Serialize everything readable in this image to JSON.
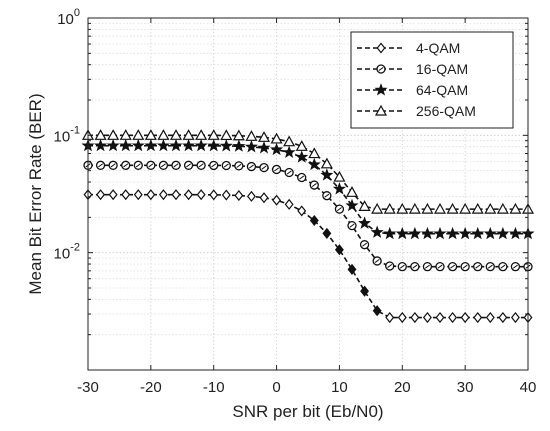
{
  "chart_data": {
    "type": "line",
    "title": "",
    "xlabel": "SNR per bit (Eb/N0)",
    "ylabel": "Mean Bit Error Rate (BER)",
    "xlim": [
      -30,
      40
    ],
    "ylim": [
      0.001,
      1
    ],
    "yscale": "log",
    "grid": true,
    "minor_grid": true,
    "legend_position": "top-right",
    "x_ticks": [
      -30,
      -20,
      -10,
      0,
      10,
      20,
      30,
      40
    ],
    "x_tick_labels": [
      "-30",
      "-20",
      "-10",
      "0",
      "10",
      "20",
      "30",
      "40"
    ],
    "y_ticks": [
      {
        "value": 1,
        "base": "10",
        "exp": "0"
      },
      {
        "value": 0.1,
        "base": "10",
        "exp": "-1"
      },
      {
        "value": 0.01,
        "base": "10",
        "exp": "-2"
      }
    ],
    "x": [
      -30,
      -28,
      -26,
      -24,
      -22,
      -20,
      -18,
      -16,
      -14,
      -12,
      -10,
      -8,
      -6,
      -4,
      -2,
      0,
      2,
      4,
      6,
      8,
      10,
      12,
      14,
      16,
      18,
      20,
      22,
      24,
      26,
      28,
      30,
      32,
      34,
      36,
      38,
      40
    ],
    "series": [
      {
        "name": "4-QAM",
        "marker": "diamond",
        "values": [
          0.0312,
          0.0312,
          0.0312,
          0.0312,
          0.0312,
          0.0312,
          0.0312,
          0.0312,
          0.0312,
          0.0312,
          0.0311,
          0.031,
          0.0307,
          0.0302,
          0.0294,
          0.028,
          0.0258,
          0.0227,
          0.0188,
          0.0146,
          0.0106,
          0.0072,
          0.0047,
          0.0032,
          0.0028,
          0.0028,
          0.0028,
          0.0028,
          0.0028,
          0.0028,
          0.0028,
          0.0028,
          0.0028,
          0.0028,
          0.0028,
          0.0028
        ]
      },
      {
        "name": "16-QAM",
        "marker": "circle",
        "values": [
          0.0555,
          0.0555,
          0.0555,
          0.0555,
          0.0555,
          0.0555,
          0.0555,
          0.0555,
          0.0555,
          0.0555,
          0.0554,
          0.0553,
          0.0549,
          0.0542,
          0.0531,
          0.0512,
          0.0482,
          0.0437,
          0.0377,
          0.0306,
          0.0235,
          0.017,
          0.0117,
          0.0085,
          0.0077,
          0.0076,
          0.0076,
          0.0076,
          0.0076,
          0.0076,
          0.0076,
          0.0076,
          0.0076,
          0.0076,
          0.0076,
          0.0076
        ]
      },
      {
        "name": "64-QAM",
        "marker": "star",
        "values": [
          0.0815,
          0.0815,
          0.0815,
          0.0815,
          0.0815,
          0.0815,
          0.0815,
          0.0815,
          0.0815,
          0.0815,
          0.0814,
          0.0812,
          0.0807,
          0.0797,
          0.0781,
          0.0756,
          0.0715,
          0.0652,
          0.0563,
          0.0458,
          0.0349,
          0.0252,
          0.0178,
          0.0149,
          0.0145,
          0.0145,
          0.0145,
          0.0145,
          0.0145,
          0.0145,
          0.0145,
          0.0145,
          0.0145,
          0.0145,
          0.0145,
          0.0145
        ]
      },
      {
        "name": "256-QAM",
        "marker": "triangle",
        "values": [
          0.1,
          0.1,
          0.1,
          0.1,
          0.1,
          0.1,
          0.1,
          0.1,
          0.1,
          0.1,
          0.1,
          0.0998,
          0.0992,
          0.0981,
          0.0962,
          0.0932,
          0.0883,
          0.0806,
          0.0699,
          0.0572,
          0.0441,
          0.0327,
          0.0248,
          0.0235,
          0.0235,
          0.0235,
          0.0235,
          0.0235,
          0.0235,
          0.0235,
          0.0235,
          0.0235,
          0.0235,
          0.0235,
          0.0235,
          0.0235
        ]
      }
    ]
  }
}
